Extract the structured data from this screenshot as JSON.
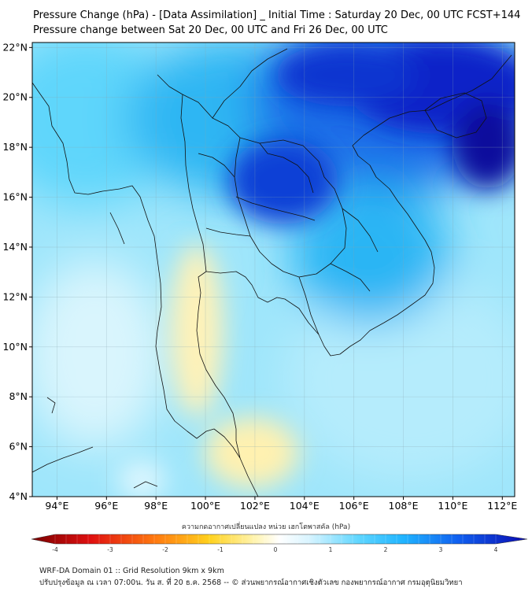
{
  "header": {
    "title_line1": "Pressure Change (hPa) - [Data Assimilation] _ Initial Time : Saturday 20 Dec, 00 UTC FCST+144",
    "title_line2": "Pressure change between Sat 20 Dec, 00 UTC and Fri 26 Dec, 00 UTC"
  },
  "map": {
    "lat_labels": [
      "22°N",
      "20°N",
      "18°N",
      "16°N",
      "14°N",
      "12°N",
      "10°N",
      "8°N",
      "6°N",
      "4°N"
    ],
    "lat_values": [
      22,
      20,
      18,
      16,
      14,
      12,
      10,
      8,
      6,
      4
    ],
    "lon_labels": [
      "94°E",
      "96°E",
      "98°E",
      "100°E",
      "102°E",
      "104°E",
      "106°E",
      "108°E",
      "110°E",
      "112°E"
    ],
    "lon_values": [
      94,
      96,
      98,
      100,
      102,
      104,
      106,
      108,
      110,
      112
    ],
    "lat_range": [
      4,
      22.2
    ],
    "lon_range": [
      93,
      112.5
    ]
  },
  "colorbar": {
    "title": "ความกดอากาศเปลี่ยนแปลง หน่วย เฮกโตพาสคัล (hPa)",
    "tick_labels": [
      "-4",
      "-3",
      "-2",
      "-1",
      "0",
      "1",
      "2",
      "3",
      "4"
    ],
    "tick_values": [
      -4,
      -3,
      -2,
      -1,
      0,
      1,
      2,
      3,
      4
    ],
    "range": [
      -4,
      4
    ]
  },
  "footer": {
    "line1": "WRF-DA Domain 01 :: Grid Resolution 9km x 9km",
    "line2": "ปรับปรุงข้อมูล ณ เวลา 07:00น. วัน ส. ที่ 20 ธ.ค. 2568 -- © ส่วนพยากรณ์อากาศเชิงตัวเลข กองพยากรณ์อากาศ กรมอุตุนิยมวิทยา"
  }
}
